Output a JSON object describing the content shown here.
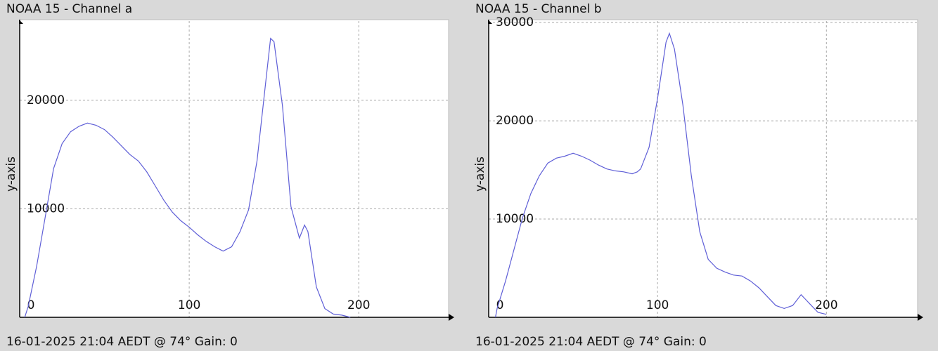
{
  "chart_data": [
    {
      "type": "line",
      "title": "NOAA 15 - Channel a",
      "y_label": "y-axis",
      "footer": "16-01-2025 21:04 AEDT @ 74° Gain: 0",
      "x": [
        3,
        5,
        10,
        15,
        20,
        25,
        30,
        35,
        40,
        45,
        50,
        55,
        60,
        65,
        70,
        75,
        80,
        85,
        90,
        95,
        100,
        105,
        110,
        115,
        120,
        125,
        130,
        135,
        140,
        145,
        148,
        150,
        155,
        160,
        165,
        168,
        170,
        175,
        180,
        185,
        190,
        195
      ],
      "values": [
        0,
        1000,
        4700,
        9200,
        13700,
        16000,
        17100,
        17600,
        17900,
        17700,
        17300,
        16600,
        15800,
        15000,
        14400,
        13400,
        12100,
        10800,
        9700,
        8900,
        8300,
        7600,
        7000,
        6500,
        6100,
        6500,
        7900,
        9900,
        14400,
        21500,
        25700,
        25400,
        19500,
        10200,
        7300,
        8500,
        7900,
        2800,
        800,
        300,
        200,
        0
      ],
      "color": "#5f5fd7",
      "xlim": [
        0,
        253
      ],
      "xticks": [
        0,
        100,
        200
      ],
      "ylim": [
        0,
        27300
      ],
      "yticks": [
        10000,
        20000
      ],
      "grid": true
    },
    {
      "type": "line",
      "title": "NOAA 15 - Channel b",
      "y_label": "y-axis",
      "footer": "16-01-2025 21:04 AEDT @ 74° Gain: 0",
      "x": [
        4,
        5,
        10,
        15,
        20,
        25,
        30,
        35,
        40,
        45,
        50,
        55,
        60,
        65,
        70,
        75,
        80,
        85,
        88,
        90,
        95,
        100,
        105,
        107,
        110,
        115,
        120,
        125,
        130,
        135,
        140,
        145,
        150,
        155,
        160,
        165,
        170,
        175,
        180,
        185,
        190,
        195,
        200
      ],
      "values": [
        0,
        900,
        3700,
        6900,
        10100,
        12600,
        14400,
        15700,
        16200,
        16400,
        16700,
        16400,
        16000,
        15500,
        15100,
        14900,
        14800,
        14600,
        14800,
        15100,
        17300,
        22300,
        28000,
        28900,
        27300,
        21600,
        14400,
        8700,
        5900,
        5000,
        4600,
        4300,
        4200,
        3700,
        3000,
        2100,
        1200,
        900,
        1200,
        2300,
        1400,
        500,
        300
      ],
      "color": "#5f5fd7",
      "xlim": [
        0,
        254
      ],
      "xticks": [
        0,
        100,
        200
      ],
      "ylim": [
        0,
        30150
      ],
      "yticks": [
        10000,
        20000,
        30000
      ],
      "grid": true
    }
  ]
}
